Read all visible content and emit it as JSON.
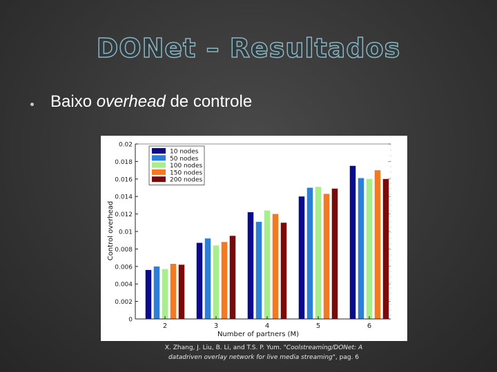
{
  "slide": {
    "title": "DONet – Resultados",
    "bullet_plain": "Baixo ",
    "bullet_italic": "overhead",
    "bullet_tail": " de controle",
    "citation_plain": "X. Zhang, J. Liu, B. Li, and T.S. P. Yum. \"",
    "citation_italic": "Coolstreaming/DONet: A datadriven overlay network for live media streaming",
    "citation_tail": "\", pag. 6"
  },
  "chart_data": {
    "type": "bar",
    "title": "",
    "xlabel": "Number of partners (M)",
    "ylabel": "Control overhead",
    "categories": [
      "2",
      "3",
      "4",
      "5",
      "6"
    ],
    "ylim": [
      0,
      0.02
    ],
    "yticks": [
      "0",
      "0.002",
      "0.004",
      "0.006",
      "0.008",
      "0.01",
      "0.012",
      "0.014",
      "0.016",
      "0.018",
      "0.02"
    ],
    "legend_position": "top-left",
    "series": [
      {
        "name": "10 nodes",
        "color": "#0a0a8c",
        "values": [
          0.0056,
          0.0087,
          0.0122,
          0.014,
          0.0175
        ]
      },
      {
        "name": "50 nodes",
        "color": "#2c7fd8",
        "values": [
          0.006,
          0.0092,
          0.0111,
          0.015,
          0.0161
        ]
      },
      {
        "name": "100 nodes",
        "color": "#a6ef8c",
        "values": [
          0.0057,
          0.0084,
          0.0124,
          0.0151,
          0.016
        ]
      },
      {
        "name": "150 nodes",
        "color": "#f47a22",
        "values": [
          0.0063,
          0.0088,
          0.012,
          0.0143,
          0.017
        ]
      },
      {
        "name": "200 nodes",
        "color": "#7a0a0a",
        "values": [
          0.0062,
          0.0095,
          0.011,
          0.0149,
          0.016
        ]
      }
    ]
  }
}
